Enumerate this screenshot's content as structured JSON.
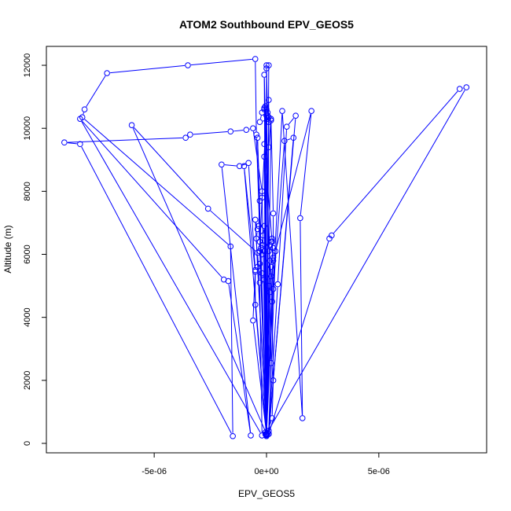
{
  "chart_data": {
    "type": "line",
    "title": "ATOM2 Southbound EPV_GEOS5",
    "xlabel": "EPV_GEOS5",
    "ylabel": "Altitude (m)",
    "xlim": [
      -9.8e-06,
      9.8e-06
    ],
    "ylim": [
      -300,
      12600
    ],
    "grid": false,
    "legend": "none",
    "x_ticks": [
      {
        "value": -5e-06,
        "label": "-5e-06"
      },
      {
        "value": 0,
        "label": "0e+00"
      },
      {
        "value": 5e-06,
        "label": "5e-06"
      }
    ],
    "y_ticks": [
      {
        "value": 0,
        "label": "0"
      },
      {
        "value": 2000,
        "label": "2000"
      },
      {
        "value": 4000,
        "label": "4000"
      },
      {
        "value": 6000,
        "label": "6000"
      },
      {
        "value": 8000,
        "label": "8000"
      },
      {
        "value": 10000,
        "label": "10000"
      },
      {
        "value": 12000,
        "label": "12000"
      }
    ],
    "series": [
      {
        "color": "#0000ff",
        "marker": "open-circle",
        "points": [
          [
            0.0,
            230
          ],
          [
            0.0,
            260
          ],
          [
            0.0,
            290
          ],
          [
            5e-08,
            320
          ],
          [
            -5e-08,
            350
          ],
          [
            1e-07,
            400
          ],
          [
            2e-07,
            2550
          ],
          [
            1.5e-07,
            4800
          ],
          [
            3e-07,
            5800
          ],
          [
            2.5e-07,
            6400
          ],
          [
            -1e-07,
            9500
          ],
          [
            5e-08,
            10400
          ],
          [
            0.0,
            11900
          ],
          [
            0.0,
            300
          ],
          [
            -3e-07,
            6100
          ],
          [
            -2e-07,
            7800
          ],
          [
            0.0,
            10600
          ],
          [
            1e-07,
            6100
          ],
          [
            -1e-07,
            11700
          ],
          [
            0.0,
            260
          ],
          [
            -4.5e-07,
            9800
          ],
          [
            -5e-07,
            12200
          ],
          [
            -3.5e-06,
            12000
          ],
          [
            -7.1e-06,
            11750
          ],
          [
            -8.1e-06,
            10600
          ],
          [
            -8.2e-06,
            10350
          ],
          [
            -1.6e-06,
            6250
          ],
          [
            -1.5e-06,
            230
          ],
          [
            -8.3e-06,
            9500
          ],
          [
            -9e-06,
            9550
          ],
          [
            -3.6e-06,
            9700
          ],
          [
            -3.4e-06,
            9800
          ],
          [
            -1.6e-06,
            9900
          ],
          [
            -9e-07,
            9950
          ],
          [
            -6e-07,
            10000
          ],
          [
            -2e-07,
            8000
          ],
          [
            0.0,
            300
          ],
          [
            -6e-06,
            10100
          ],
          [
            -2.6e-06,
            7450
          ],
          [
            -4e-07,
            6050
          ],
          [
            -3e-07,
            5100
          ],
          [
            -2e-07,
            250
          ],
          [
            -8.3e-06,
            10300
          ],
          [
            -1.9e-06,
            5200
          ],
          [
            -1.7e-06,
            5150
          ],
          [
            -7e-07,
            250
          ],
          [
            -2e-06,
            8850
          ],
          [
            -1.2e-06,
            8800
          ],
          [
            -8e-07,
            8900
          ],
          [
            -5e-07,
            5500
          ],
          [
            -6e-07,
            3900
          ],
          [
            0.0,
            300
          ],
          [
            -1e-06,
            8800
          ],
          [
            -5e-07,
            5450
          ],
          [
            -5e-07,
            4400
          ],
          [
            0.0,
            280
          ],
          [
            0.0,
            300
          ],
          [
            0.0,
            12000
          ],
          [
            1e-07,
            12000
          ],
          [
            0.0,
            300
          ],
          [
            0.0,
            300
          ],
          [
            0.0,
            300
          ],
          [
            0.0,
            300
          ],
          [
            0.0,
            300
          ],
          [
            0.0,
            300
          ],
          [
            -5e-08,
            290
          ],
          [
            7e-07,
            10550
          ],
          [
            1.6e-06,
            800
          ],
          [
            1.5e-06,
            7150
          ],
          [
            2e-06,
            10550
          ],
          [
            4e-07,
            6100
          ],
          [
            1e-07,
            300
          ],
          [
            1.3e-06,
            10400
          ],
          [
            9e-07,
            10050
          ],
          [
            5e-07,
            5050
          ],
          [
            1e-07,
            300
          ],
          [
            1.2e-06,
            9700
          ],
          [
            8e-07,
            9600
          ],
          [
            3e-07,
            4900
          ],
          [
            0.0,
            300
          ],
          [
            8.9e-06,
            11300
          ],
          [
            8.6e-06,
            11250
          ],
          [
            2.9e-06,
            6600
          ],
          [
            2.8e-06,
            6500
          ],
          [
            1e-07,
            300
          ],
          [
            0.0,
            300
          ],
          [
            2e-07,
            10250
          ],
          [
            3e-07,
            7300
          ],
          [
            3e-07,
            6200
          ],
          [
            2e-07,
            5600
          ],
          [
            0.0,
            300
          ],
          [
            1.5e-07,
            5800
          ],
          [
            2e-07,
            5300
          ],
          [
            2.5e-07,
            4500
          ],
          [
            3e-07,
            2000
          ],
          [
            2.5e-07,
            800
          ],
          [
            0.0,
            300
          ],
          [
            1e-07,
            10900
          ],
          [
            5e-08,
            10300
          ],
          [
            1e-07,
            10200
          ],
          [
            -1e-07,
            10600
          ],
          [
            -2e-07,
            10500
          ],
          [
            -3e-07,
            10200
          ],
          [
            2e-07,
            10300
          ],
          [
            1e-07,
            9400
          ],
          [
            -1e-07,
            9100
          ],
          [
            0.0,
            300
          ],
          [
            -4e-07,
            9700
          ],
          [
            -3e-07,
            7700
          ],
          [
            -3.5e-07,
            6900
          ],
          [
            -3e-07,
            6400
          ],
          [
            -2.5e-07,
            6200
          ],
          [
            -2e-07,
            6000
          ],
          [
            -3e-07,
            5700
          ],
          [
            -2e-07,
            5400
          ],
          [
            -1e-07,
            5200
          ],
          [
            0.0,
            300
          ],
          [
            3e-07,
            5900
          ],
          [
            2e-07,
            6400
          ],
          [
            2.5e-07,
            6500
          ],
          [
            1.5e-07,
            6300
          ],
          [
            1e-07,
            5000
          ],
          [
            0.0,
            300
          ],
          [
            -1e-07,
            6900
          ],
          [
            -1.5e-07,
            6600
          ],
          [
            -2e-07,
            6300
          ],
          [
            -1e-07,
            6100
          ],
          [
            0.0,
            300
          ],
          [
            -5e-07,
            7100
          ],
          [
            -4e-07,
            6800
          ],
          [
            -4.5e-07,
            6500
          ],
          [
            -4e-07,
            5600
          ],
          [
            0.0,
            300
          ],
          [
            -5e-08,
            10700
          ],
          [
            -1e-07,
            10650
          ],
          [
            5e-08,
            10500
          ],
          [
            0.0,
            10400
          ],
          [
            1e-07,
            10350
          ],
          [
            0.0,
            300
          ]
        ]
      }
    ]
  }
}
